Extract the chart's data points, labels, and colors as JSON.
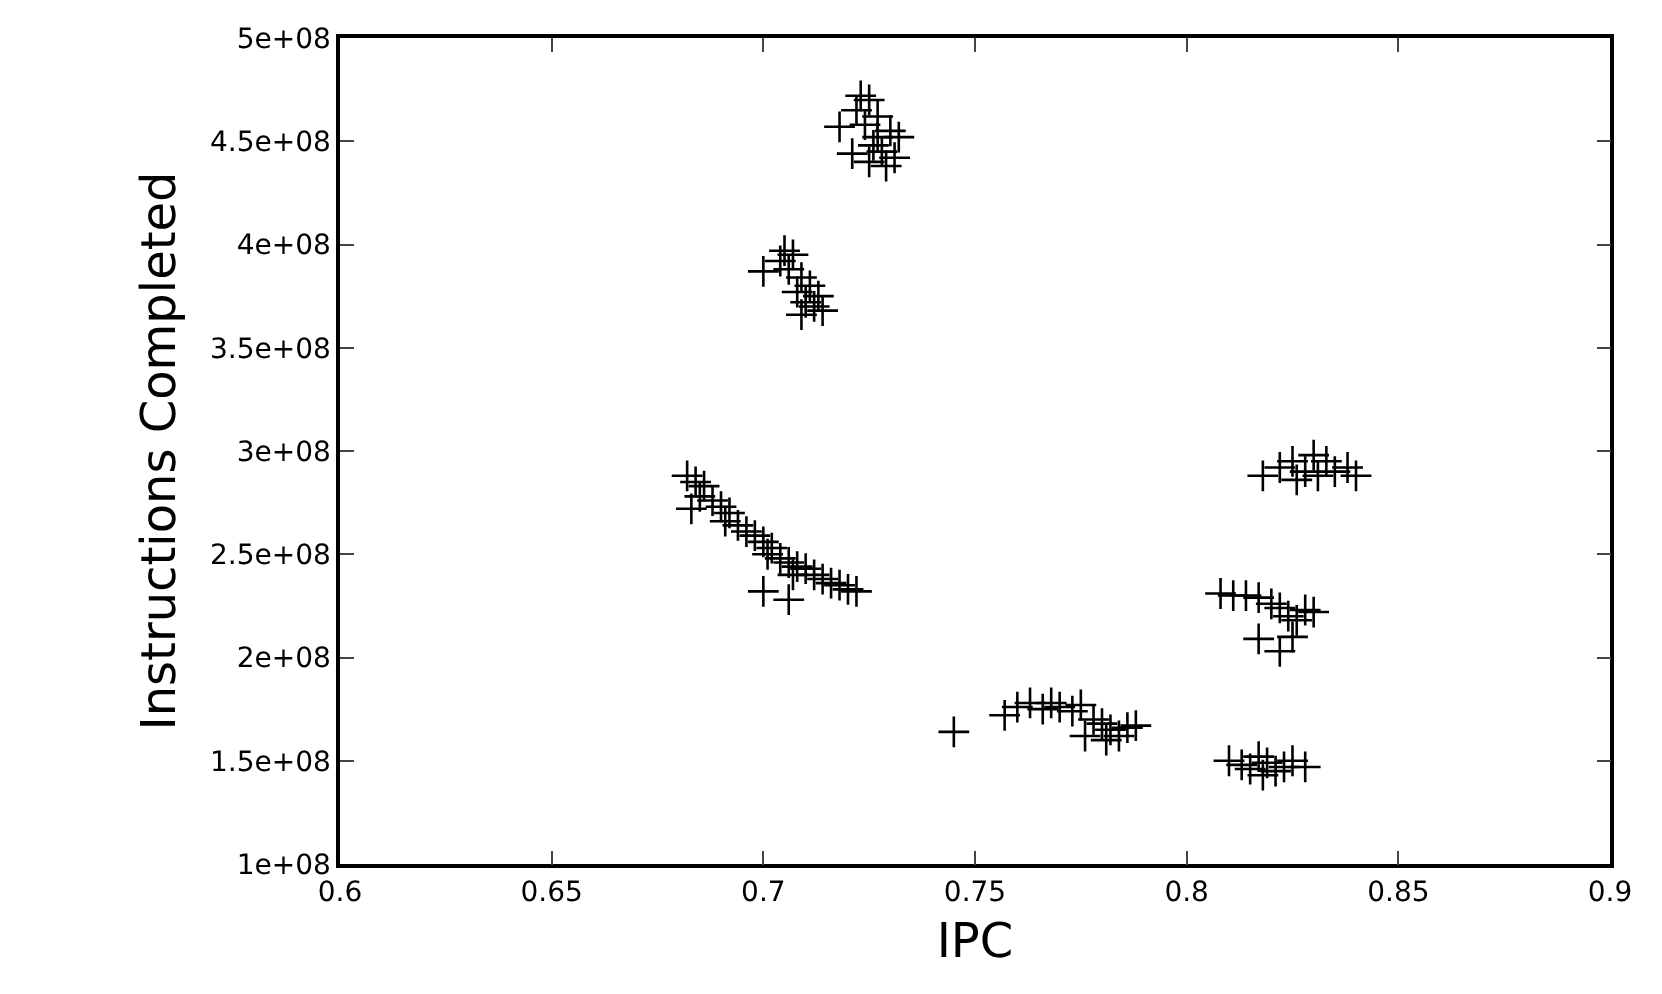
{
  "chart_data": {
    "type": "scatter",
    "xlabel": "IPC",
    "ylabel": "Instructions Completed",
    "marker": "cross",
    "xlim": [
      0.6,
      0.9
    ],
    "xticks": [
      0.6,
      0.65,
      0.7,
      0.75,
      0.8,
      0.85,
      0.9
    ],
    "ylim": [
      100000000,
      500000000
    ],
    "yticks": [
      {
        "value": 100000000,
        "label": "1e+08"
      },
      {
        "value": 150000000,
        "label": "1.5e+08"
      },
      {
        "value": 200000000,
        "label": "2e+08"
      },
      {
        "value": 250000000,
        "label": "2.5e+08"
      },
      {
        "value": 300000000,
        "label": "3e+08"
      },
      {
        "value": 350000000,
        "label": "3.5e+08"
      },
      {
        "value": 400000000,
        "label": "4e+08"
      },
      {
        "value": 450000000,
        "label": "4.5e+08"
      },
      {
        "value": 500000000,
        "label": "5e+08"
      }
    ],
    "series": [
      {
        "color": "#000000",
        "x": [
          0.723,
          0.725,
          0.722,
          0.727,
          0.718,
          0.724,
          0.73,
          0.732,
          0.726,
          0.728,
          0.731,
          0.725,
          0.729,
          0.721,
          0.727,
          0.705,
          0.707,
          0.704,
          0.7,
          0.706,
          0.709,
          0.711,
          0.708,
          0.713,
          0.71,
          0.712,
          0.714,
          0.709,
          0.682,
          0.684,
          0.686,
          0.685,
          0.688,
          0.69,
          0.692,
          0.691,
          0.694,
          0.696,
          0.698,
          0.7,
          0.702,
          0.701,
          0.704,
          0.706,
          0.708,
          0.707,
          0.71,
          0.712,
          0.714,
          0.716,
          0.718,
          0.72,
          0.722,
          0.7,
          0.706,
          0.683,
          0.745,
          0.757,
          0.76,
          0.763,
          0.766,
          0.768,
          0.77,
          0.773,
          0.775,
          0.778,
          0.78,
          0.782,
          0.784,
          0.786,
          0.788,
          0.776,
          0.781,
          0.818,
          0.822,
          0.825,
          0.828,
          0.83,
          0.833,
          0.835,
          0.838,
          0.84,
          0.826,
          0.831,
          0.808,
          0.811,
          0.814,
          0.817,
          0.82,
          0.822,
          0.824,
          0.826,
          0.828,
          0.83,
          0.817,
          0.822,
          0.825,
          0.81,
          0.813,
          0.815,
          0.817,
          0.819,
          0.821,
          0.823,
          0.825,
          0.828,
          0.818
        ],
        "values": [
          472000000,
          470000000,
          465000000,
          462000000,
          457000000,
          458000000,
          455000000,
          452000000,
          448000000,
          445000000,
          442000000,
          440000000,
          438000000,
          444000000,
          452000000,
          397000000,
          395000000,
          392000000,
          387000000,
          388000000,
          384000000,
          380000000,
          377000000,
          375000000,
          372000000,
          370000000,
          368000000,
          366000000,
          288000000,
          285000000,
          283000000,
          278000000,
          276000000,
          273000000,
          270000000,
          266000000,
          264000000,
          261000000,
          259000000,
          256000000,
          253000000,
          250000000,
          248000000,
          246000000,
          244000000,
          240000000,
          243000000,
          240000000,
          238000000,
          236000000,
          235000000,
          233000000,
          232000000,
          232000000,
          228000000,
          272000000,
          164000000,
          172000000,
          176000000,
          178000000,
          175000000,
          178000000,
          176000000,
          174000000,
          177000000,
          170000000,
          168000000,
          165000000,
          162000000,
          166000000,
          167000000,
          162000000,
          160000000,
          288000000,
          292000000,
          295000000,
          290000000,
          298000000,
          295000000,
          290000000,
          292000000,
          288000000,
          286000000,
          288000000,
          231000000,
          230000000,
          230000000,
          229000000,
          226000000,
          224000000,
          220000000,
          218000000,
          223000000,
          222000000,
          209000000,
          203000000,
          210000000,
          150000000,
          148000000,
          146000000,
          152000000,
          149000000,
          145000000,
          147000000,
          150000000,
          147000000,
          143000000
        ]
      }
    ]
  }
}
